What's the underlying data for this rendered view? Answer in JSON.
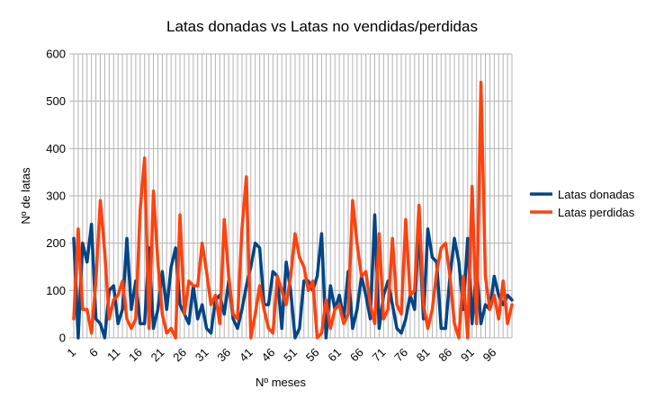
{
  "chart_data": {
    "type": "line",
    "title": "Latas donadas vs Latas no vendidas/perdidas",
    "xlabel": "Nº meses",
    "ylabel": "Nº de latas",
    "ylim": [
      0,
      600
    ],
    "yticks": [
      0,
      100,
      200,
      300,
      400,
      500,
      600
    ],
    "xticks": [
      1,
      6,
      11,
      16,
      21,
      26,
      31,
      36,
      41,
      46,
      51,
      56,
      61,
      66,
      71,
      76,
      81,
      86,
      91,
      96
    ],
    "x_count": 100,
    "grid": true,
    "legend_position": "right",
    "series": [
      {
        "name": "Latas donadas",
        "color": "#004586",
        "values": [
          210,
          0,
          200,
          160,
          240,
          40,
          30,
          0,
          100,
          110,
          30,
          60,
          210,
          60,
          120,
          30,
          30,
          190,
          20,
          60,
          140,
          60,
          150,
          190,
          70,
          50,
          30,
          110,
          40,
          70,
          20,
          10,
          80,
          90,
          50,
          120,
          40,
          20,
          60,
          110,
          150,
          200,
          190,
          70,
          70,
          140,
          130,
          20,
          160,
          100,
          0,
          20,
          120,
          120,
          100,
          130,
          220,
          0,
          110,
          60,
          90,
          40,
          140,
          20,
          60,
          130,
          90,
          40,
          260,
          20,
          90,
          120,
          70,
          20,
          10,
          40,
          90,
          60,
          240,
          40,
          230,
          170,
          160,
          20,
          20,
          130,
          210,
          160,
          60,
          210,
          30,
          150,
          30,
          70,
          60,
          130,
          90,
          70,
          90,
          80
        ]
      },
      {
        "name": "Latas perdidas",
        "color": "#ff420e",
        "values": [
          40,
          230,
          60,
          60,
          10,
          120,
          290,
          180,
          40,
          80,
          90,
          120,
          40,
          20,
          40,
          270,
          380,
          20,
          310,
          160,
          50,
          10,
          20,
          0,
          260,
          50,
          120,
          110,
          110,
          200,
          140,
          70,
          90,
          30,
          250,
          130,
          50,
          40,
          230,
          340,
          0,
          50,
          110,
          60,
          20,
          10,
          130,
          100,
          70,
          130,
          220,
          170,
          150,
          100,
          120,
          0,
          10,
          80,
          20,
          60,
          70,
          30,
          50,
          290,
          200,
          130,
          140,
          70,
          30,
          220,
          40,
          60,
          210,
          70,
          50,
          250,
          90,
          100,
          280,
          70,
          20,
          60,
          140,
          190,
          200,
          130,
          30,
          0,
          130,
          0,
          320,
          30,
          540,
          130,
          60,
          90,
          40,
          120,
          30,
          70
        ]
      }
    ]
  }
}
